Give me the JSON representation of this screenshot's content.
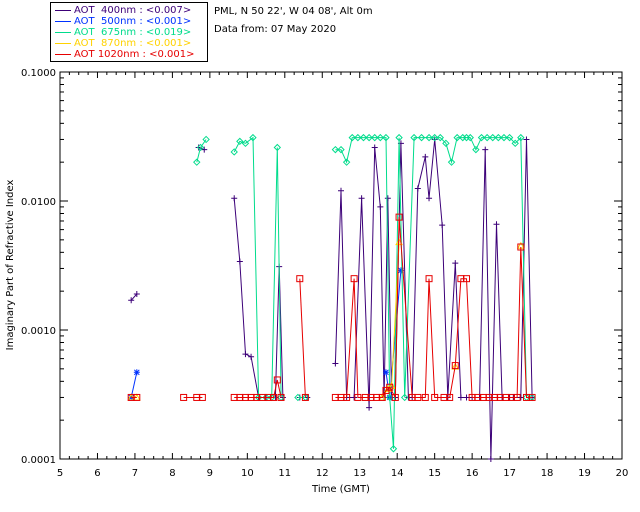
{
  "info": {
    "station": "PML, N 50 22', W 04 08', Alt 0m",
    "date": "Data from: 07 May 2020"
  },
  "colors": {
    "axis": "#000000",
    "aot400": "#3c0078",
    "aot500": "#0032ff",
    "aot675": "#00dc8c",
    "aot870": "#ffd200",
    "aot1020": "#e60000"
  },
  "chart_data": {
    "type": "line",
    "title": "",
    "xlabel": "Time (GMT)",
    "ylabel": "Imaginary Part of Refractive Index",
    "xlim": [
      5,
      20
    ],
    "ylim": [
      0.0001,
      0.1
    ],
    "yscale": "log",
    "xticks": [
      "5",
      "6",
      "7",
      "8",
      "9",
      "10",
      "11",
      "12",
      "13",
      "14",
      "15",
      "16",
      "17",
      "18",
      "19",
      "20"
    ],
    "yticks": [
      "0.1000",
      "0.0100",
      "0.0010",
      "0.0001"
    ],
    "ytick_values": [
      0.1,
      0.01,
      0.001,
      0.0001
    ],
    "legend_position": "top-left, outside plot",
    "series": [
      {
        "name": "AOT  400nm : <0.007>",
        "color": "#3c0078",
        "marker": "plus",
        "points": [
          [
            6.9,
            0.0017
          ],
          [
            7.05,
            0.0019
          ],
          [
            8.7,
            0.026
          ],
          [
            8.85,
            0.025
          ],
          [
            9.65,
            0.0105
          ],
          [
            9.8,
            0.0034
          ],
          [
            9.95,
            0.00065
          ],
          [
            10.1,
            0.00062
          ],
          [
            10.3,
            0.0003
          ],
          [
            10.5,
            0.0003
          ],
          [
            10.75,
            0.0003
          ],
          [
            10.85,
            0.0031
          ],
          [
            10.95,
            0.0003
          ],
          [
            11.4,
            0.0003
          ],
          [
            11.6,
            0.0003
          ],
          [
            12.35,
            0.00055
          ],
          [
            12.5,
            0.012
          ],
          [
            12.65,
            0.0003
          ],
          [
            12.85,
            0.0003
          ],
          [
            13.05,
            0.0105
          ],
          [
            13.25,
            0.00025
          ],
          [
            13.4,
            0.026
          ],
          [
            13.55,
            0.009
          ],
          [
            13.65,
            0.0003
          ],
          [
            13.75,
            0.0105
          ],
          [
            13.85,
            0.0003
          ],
          [
            13.95,
            0.0003
          ],
          [
            14.1,
            0.028
          ],
          [
            14.3,
            0.0003
          ],
          [
            14.4,
            0.0003
          ],
          [
            14.55,
            0.0125
          ],
          [
            14.75,
            0.022
          ],
          [
            14.85,
            0.0105
          ],
          [
            15.0,
            0.03
          ],
          [
            15.2,
            0.0065
          ],
          [
            15.35,
            0.0003
          ],
          [
            15.55,
            0.0033
          ],
          [
            15.7,
            0.0003
          ],
          [
            15.85,
            0.0003
          ],
          [
            16.0,
            0.0003
          ],
          [
            16.2,
            0.0003
          ],
          [
            16.35,
            0.025
          ],
          [
            16.5,
            9e-05
          ],
          [
            16.65,
            0.0066
          ],
          [
            16.8,
            0.0003
          ],
          [
            17.0,
            0.0003
          ],
          [
            17.1,
            0.0003
          ],
          [
            17.3,
            0.0003
          ],
          [
            17.45,
            0.03
          ],
          [
            17.6,
            0.0003
          ]
        ]
      },
      {
        "name": "AOT  500nm : <0.001>",
        "color": "#0032ff",
        "marker": "star",
        "points": [
          [
            6.9,
            0.0003
          ],
          [
            7.05,
            0.00047
          ],
          [
            13.7,
            0.00047
          ],
          [
            13.8,
            0.0003
          ],
          [
            14.1,
            0.0029
          ]
        ]
      },
      {
        "name": "AOT  675nm : <0.019>",
        "color": "#00dc8c",
        "marker": "diamond",
        "points": [
          [
            8.65,
            0.02
          ],
          [
            8.75,
            0.026
          ],
          [
            8.9,
            0.03
          ],
          [
            9.65,
            0.024
          ],
          [
            9.8,
            0.029
          ],
          [
            9.95,
            0.028
          ],
          [
            10.15,
            0.031
          ],
          [
            10.3,
            0.0003
          ],
          [
            10.5,
            0.0003
          ],
          [
            10.65,
            0.0003
          ],
          [
            10.8,
            0.026
          ],
          [
            10.9,
            0.0003
          ],
          [
            11.35,
            0.0003
          ],
          [
            11.55,
            0.0003
          ],
          [
            12.35,
            0.025
          ],
          [
            12.5,
            0.025
          ],
          [
            12.65,
            0.02
          ],
          [
            12.8,
            0.031
          ],
          [
            12.95,
            0.031
          ],
          [
            13.1,
            0.031
          ],
          [
            13.25,
            0.031
          ],
          [
            13.4,
            0.031
          ],
          [
            13.55,
            0.031
          ],
          [
            13.7,
            0.031
          ],
          [
            13.8,
            0.0003
          ],
          [
            13.9,
            0.00012
          ],
          [
            14.05,
            0.031
          ],
          [
            14.2,
            0.0003
          ],
          [
            14.45,
            0.031
          ],
          [
            14.65,
            0.031
          ],
          [
            14.85,
            0.031
          ],
          [
            15.0,
            0.031
          ],
          [
            15.15,
            0.031
          ],
          [
            15.3,
            0.028
          ],
          [
            15.45,
            0.02
          ],
          [
            15.6,
            0.031
          ],
          [
            15.75,
            0.031
          ],
          [
            15.85,
            0.031
          ],
          [
            15.95,
            0.031
          ],
          [
            16.1,
            0.025
          ],
          [
            16.25,
            0.031
          ],
          [
            16.4,
            0.031
          ],
          [
            16.55,
            0.031
          ],
          [
            16.7,
            0.031
          ],
          [
            16.85,
            0.031
          ],
          [
            17.0,
            0.031
          ],
          [
            17.15,
            0.028
          ],
          [
            17.3,
            0.031
          ],
          [
            17.45,
            0.0003
          ],
          [
            17.6,
            0.0003
          ]
        ]
      },
      {
        "name": "AOT  870nm : <0.001>",
        "color": "#ffd200",
        "marker": "triangle",
        "points": [
          [
            6.9,
            0.0003
          ],
          [
            7.05,
            0.0003
          ],
          [
            13.6,
            0.0003
          ],
          [
            13.75,
            0.00035
          ],
          [
            13.85,
            0.00037
          ],
          [
            14.05,
            0.0048
          ],
          [
            15.55,
            0.00052
          ],
          [
            17.3,
            0.0045
          ]
        ]
      },
      {
        "name": "AOT 1020nm : <0.001>",
        "color": "#e60000",
        "marker": "square",
        "points": [
          [
            6.9,
            0.0003
          ],
          [
            7.05,
            0.0003
          ],
          [
            8.3,
            0.0003
          ],
          [
            8.65,
            0.0003
          ],
          [
            8.8,
            0.0003
          ],
          [
            9.65,
            0.0003
          ],
          [
            9.8,
            0.0003
          ],
          [
            9.95,
            0.0003
          ],
          [
            10.1,
            0.0003
          ],
          [
            10.25,
            0.0003
          ],
          [
            10.4,
            0.0003
          ],
          [
            10.55,
            0.0003
          ],
          [
            10.7,
            0.0003
          ],
          [
            10.8,
            0.00041
          ],
          [
            10.9,
            0.0003
          ],
          [
            11.4,
            0.0025
          ],
          [
            11.55,
            0.0003
          ],
          [
            12.35,
            0.0003
          ],
          [
            12.5,
            0.0003
          ],
          [
            12.65,
            0.0003
          ],
          [
            12.85,
            0.0025
          ],
          [
            12.95,
            0.0003
          ],
          [
            13.15,
            0.0003
          ],
          [
            13.3,
            0.0003
          ],
          [
            13.45,
            0.0003
          ],
          [
            13.6,
            0.0003
          ],
          [
            13.7,
            0.00034
          ],
          [
            13.8,
            0.00036
          ],
          [
            13.95,
            0.0003
          ],
          [
            14.05,
            0.0075
          ],
          [
            14.4,
            0.0003
          ],
          [
            14.55,
            0.0003
          ],
          [
            14.75,
            0.0003
          ],
          [
            14.85,
            0.0025
          ],
          [
            15.0,
            0.0003
          ],
          [
            15.25,
            0.0003
          ],
          [
            15.4,
            0.0003
          ],
          [
            15.55,
            0.00053
          ],
          [
            15.7,
            0.0025
          ],
          [
            15.85,
            0.0025
          ],
          [
            16.0,
            0.0003
          ],
          [
            16.15,
            0.0003
          ],
          [
            16.3,
            0.0003
          ],
          [
            16.45,
            0.0003
          ],
          [
            16.6,
            0.0003
          ],
          [
            16.75,
            0.0003
          ],
          [
            16.9,
            0.0003
          ],
          [
            17.05,
            0.0003
          ],
          [
            17.2,
            0.0003
          ],
          [
            17.3,
            0.0044
          ],
          [
            17.45,
            0.0003
          ],
          [
            17.6,
            0.0003
          ]
        ]
      }
    ]
  }
}
